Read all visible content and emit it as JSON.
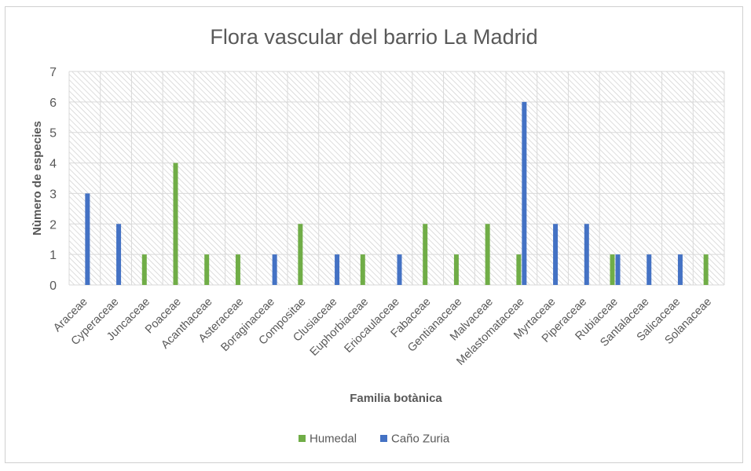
{
  "chart_data": {
    "type": "bar",
    "title": "Flora vascular del barrio La Madrid",
    "xlabel": "Familia botànica",
    "ylabel": "Nùmero de especies",
    "ylim": [
      0,
      7
    ],
    "yticks": [
      0,
      1,
      2,
      3,
      4,
      5,
      6,
      7
    ],
    "grid": true,
    "legend_position": "bottom",
    "categories": [
      "Araceae",
      "Cyperaceae",
      "Juncaceae",
      "Poaceae",
      "Acanthaceae",
      "Asteraceae",
      "Boraginaceae",
      "Compositae",
      "Clusiaceae",
      "Euphorbiaceae",
      "Eriocaulaceae",
      "Fabaceae",
      "Gentianaceae",
      "Malvaceae",
      "Melastomataceae",
      "Myrtaceae",
      "Piperaceae",
      "Rubiaceae",
      "Santalaceae",
      "Salicaceae",
      "Solanaceae"
    ],
    "series": [
      {
        "name": "Humedal",
        "color": "#70ad47",
        "values": [
          0,
          0,
          1,
          4,
          1,
          1,
          0,
          2,
          0,
          1,
          0,
          2,
          1,
          2,
          1,
          0,
          0,
          1,
          0,
          0,
          1
        ]
      },
      {
        "name": "Caño Zuria",
        "color": "#4472c4",
        "values": [
          3,
          2,
          0,
          0,
          0,
          0,
          1,
          0,
          1,
          0,
          1,
          0,
          0,
          0,
          6,
          2,
          2,
          1,
          1,
          1,
          0
        ]
      }
    ]
  }
}
